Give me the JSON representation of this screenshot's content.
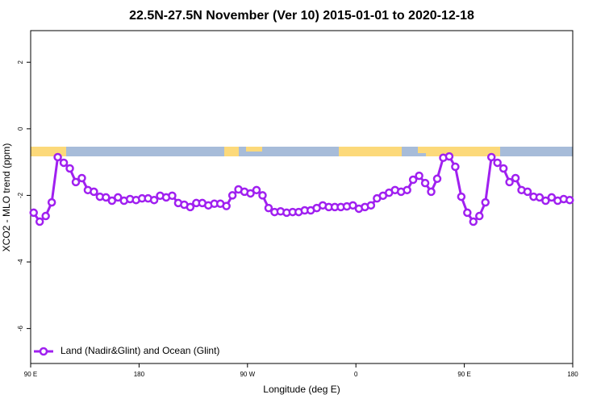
{
  "chart_data": {
    "type": "line",
    "title": "22.5N-27.5N November (Ver 10)   2015-01-01 to 2020-12-18",
    "x_label": "Longitude (deg E)",
    "y_label": "XCO2 - MLO trend (ppm)",
    "x": [
      92.5,
      97.5,
      102.5,
      107.5,
      112.5,
      117.5,
      122.5,
      127.5,
      132.5,
      137.5,
      142.5,
      147.5,
      152.5,
      157.5,
      162.5,
      167.5,
      172.5,
      177.5,
      182.5,
      187.5,
      192.5,
      197.5,
      202.5,
      207.5,
      212.5,
      217.5,
      222.5,
      227.5,
      232.5,
      237.5,
      242.5,
      247.5,
      252.5,
      257.5,
      262.5,
      267.5,
      272.5,
      277.5,
      282.5,
      287.5,
      292.5,
      297.5,
      302.5,
      307.5,
      312.5,
      317.5,
      322.5,
      327.5,
      332.5,
      337.5,
      342.5,
      347.5,
      352.5,
      357.5,
      362.5,
      367.5,
      372.5,
      377.5,
      382.5,
      387.5,
      392.5,
      397.5,
      402.5,
      407.5,
      412.5,
      417.5,
      422.5,
      427.5,
      432.5,
      437.5,
      442.5,
      447.5,
      452.5,
      457.5,
      462.5,
      467.5,
      472.5,
      477.5,
      482.5,
      487.5,
      492.5,
      497.5,
      502.5,
      507.5,
      512.5,
      517.5,
      522.5,
      527.5,
      532.5,
      537.5
    ],
    "series": [
      {
        "name": "Land (Nadir&Glint) and Ocean (Glint)",
        "color": "#a020f0",
        "values": [
          -2.52,
          -2.79,
          -2.62,
          -2.21,
          -0.85,
          -1.02,
          -1.19,
          -1.6,
          -1.48,
          -1.84,
          -1.89,
          -2.04,
          -2.06,
          -2.16,
          -2.06,
          -2.16,
          -2.11,
          -2.14,
          -2.09,
          -2.09,
          -2.14,
          -2.01,
          -2.06,
          -2.01,
          -2.23,
          -2.28,
          -2.35,
          -2.23,
          -2.23,
          -2.3,
          -2.25,
          -2.25,
          -2.32,
          -2.0,
          -1.82,
          -1.89,
          -1.94,
          -1.84,
          -2.0,
          -2.38,
          -2.5,
          -2.48,
          -2.52,
          -2.5,
          -2.5,
          -2.45,
          -2.45,
          -2.38,
          -2.3,
          -2.35,
          -2.35,
          -2.35,
          -2.33,
          -2.3,
          -2.4,
          -2.35,
          -2.3,
          -2.09,
          -2.01,
          -1.92,
          -1.84,
          -1.89,
          -1.84,
          -1.53,
          -1.41,
          -1.63,
          -1.89,
          -1.5,
          -0.87,
          -0.83,
          -1.14,
          -2.04,
          -2.52,
          -2.79,
          -2.62,
          -2.21,
          -0.85,
          -1.02,
          -1.19,
          -1.6,
          -1.48,
          -1.84,
          -1.89,
          -2.04,
          -2.06,
          -2.16,
          -2.06,
          -2.16,
          -2.11,
          -2.14
        ]
      }
    ],
    "xlim": [
      90,
      540
    ],
    "xticks": [
      {
        "value": 90,
        "label": "90 E"
      },
      180,
      {
        "value": 270,
        "label": "90 W"
      },
      {
        "value": 360,
        "label": "0"
      },
      {
        "value": 450,
        "label": "90 E"
      },
      {
        "value": 540,
        "label": "180"
      }
    ],
    "ylim": [
      -7.05,
      2.95
    ],
    "yticks": [
      2,
      0,
      -2,
      -4,
      -6
    ],
    "legend": "bottom-left"
  }
}
